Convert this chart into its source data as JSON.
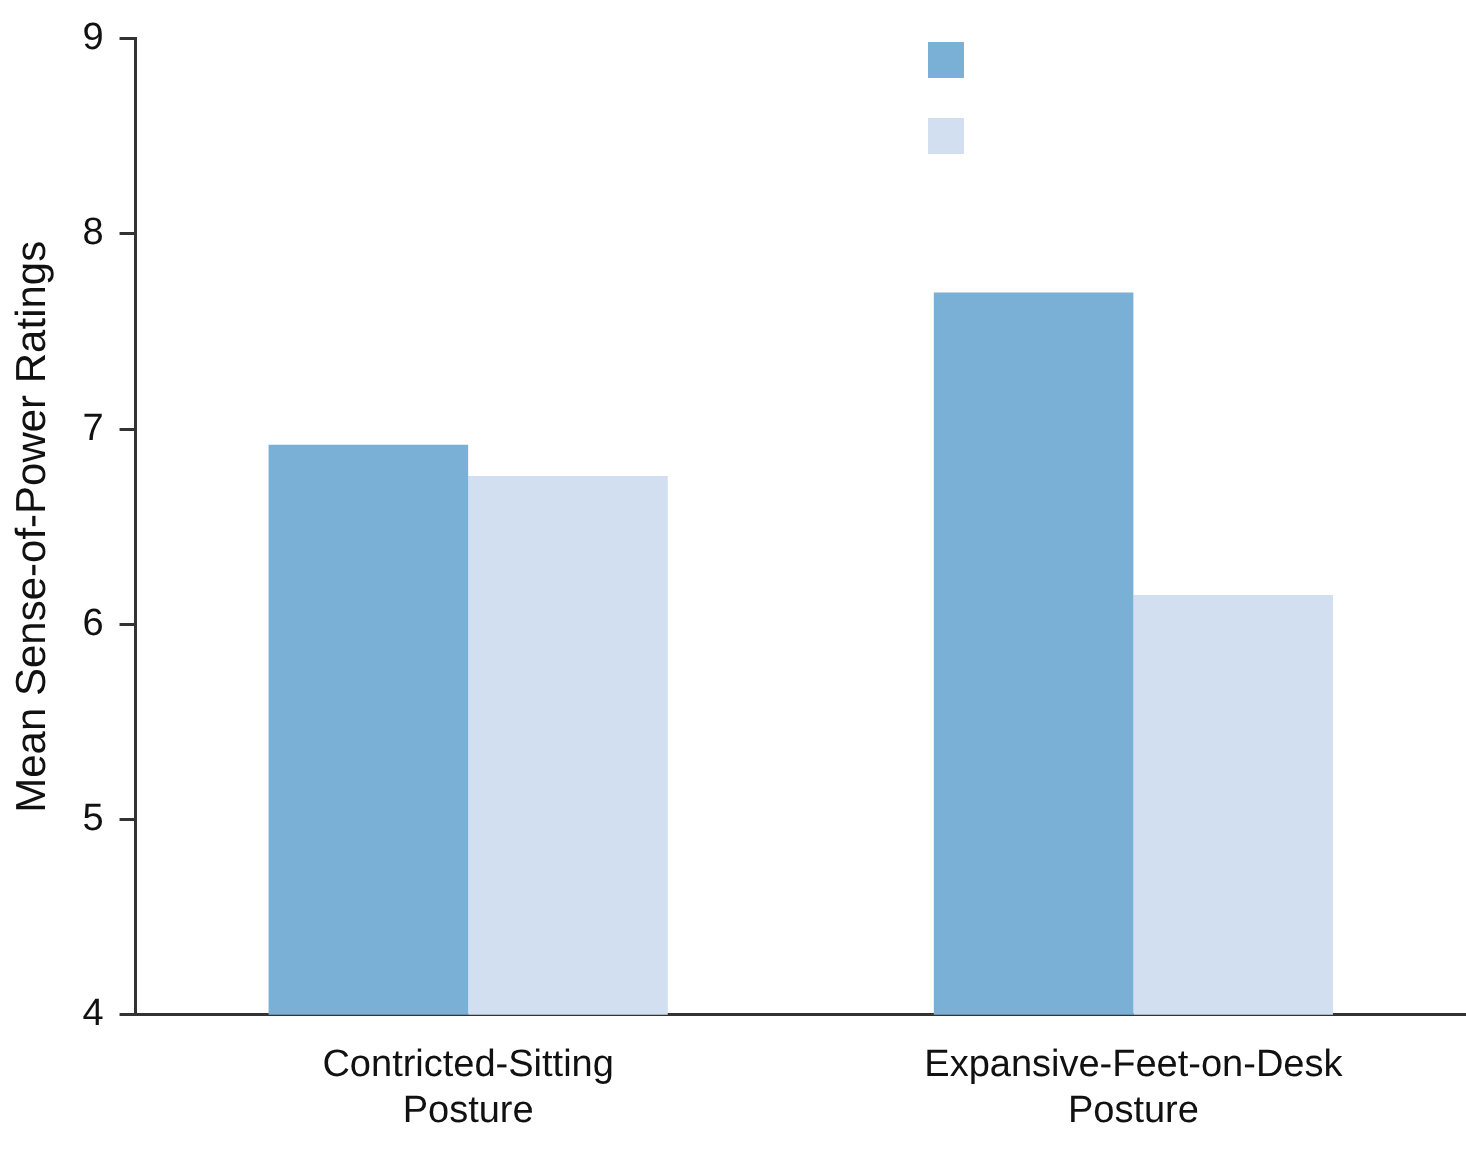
{
  "chart_data": {
    "type": "bar",
    "ylabel": "Mean Sense-of-Power Ratings",
    "categories": [
      "Contricted-Sitting Posture",
      "Expansive-Feet-on-Desk Posture"
    ],
    "series": [
      {
        "color": "#7aafd6",
        "values": [
          6.92,
          7.7
        ]
      },
      {
        "color": "#d2dff0",
        "values": [
          6.76,
          6.15
        ]
      }
    ],
    "ylim": [
      4,
      9
    ],
    "yticks": [
      4,
      5,
      6,
      7,
      8,
      9
    ],
    "grid": false
  }
}
